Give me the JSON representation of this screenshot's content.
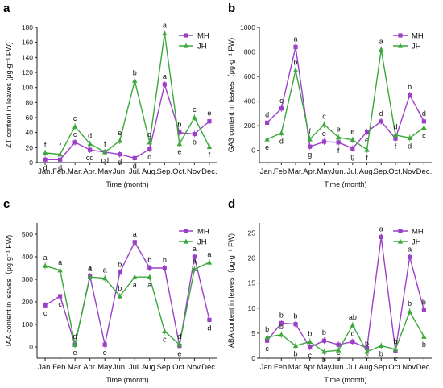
{
  "colors": {
    "MH": "#9b3fc8",
    "JH": "#3aa83a",
    "axis": "#222222"
  },
  "chart_data": [
    {
      "panel": "a",
      "type": "line",
      "categories": [
        "Jan.",
        "Feb.",
        "Mar.",
        "Apr.",
        "May",
        "Jun.",
        "Jul.",
        "Aug.",
        "Sep.",
        "Oct.",
        "Nov.",
        "Dec."
      ],
      "ylabel": "ZT content in leaves (μg·g⁻¹ FW)",
      "xlabel": "Time (month)",
      "ylim": [
        0,
        180
      ],
      "yticks": [
        0,
        20,
        40,
        60,
        80,
        100,
        120,
        140,
        160,
        180
      ],
      "legend_position": "top-right",
      "series": [
        {
          "name": "MH",
          "marker": "square",
          "values": [
            4,
            4,
            27,
            17,
            14,
            11,
            6,
            18,
            104,
            40,
            38,
            55
          ],
          "labels": [
            "d",
            "d",
            "c",
            "cd",
            "cd",
            "d",
            "d",
            "d",
            "a",
            "b",
            "b",
            "e"
          ],
          "label_pos": [
            "below",
            "below",
            "above",
            "below",
            "below",
            "below",
            "below",
            "below",
            "above",
            "above",
            "below",
            "above"
          ]
        },
        {
          "name": "JH",
          "marker": "triangle",
          "values": [
            13,
            11,
            48,
            25,
            14,
            29,
            109,
            27,
            172,
            25,
            60,
            21
          ],
          "labels": [
            "f",
            "f",
            "c",
            "d",
            "f",
            "e",
            "b",
            "d",
            "a",
            "e",
            "c",
            "f"
          ],
          "label_pos": [
            "above",
            "above",
            "above",
            "above",
            "above",
            "above",
            "above",
            "above",
            "above",
            "below",
            "above",
            "below"
          ]
        }
      ]
    },
    {
      "panel": "b",
      "type": "line",
      "categories": [
        "Jan.",
        "Feb.",
        "Mar.",
        "Apr.",
        "May",
        "Jun.",
        "Jul.",
        "Aug.",
        "Sep.",
        "Oct.",
        "Nov.",
        "Dec."
      ],
      "ylabel": "GA3 content in leaves（μg·g⁻¹ FW)",
      "xlabel": "Time (month)",
      "ylim": [
        -100,
        1000
      ],
      "yticks": [
        0,
        200,
        400,
        600,
        800,
        1000
      ],
      "legend_position": "top-right",
      "series": [
        {
          "name": "MH",
          "marker": "square",
          "values": [
            225,
            340,
            840,
            30,
            70,
            65,
            15,
            150,
            235,
            95,
            450,
            235
          ],
          "labels": [
            "d",
            "c",
            "a",
            "g",
            "e",
            "f",
            "g",
            "e",
            "d",
            "f",
            "b",
            "d"
          ],
          "label_pos": [
            "above",
            "above",
            "above",
            "below",
            "above",
            "below",
            "below",
            "below",
            "above",
            "below",
            "above",
            "above"
          ]
        },
        {
          "name": "JH",
          "marker": "triangle",
          "values": [
            90,
            140,
            650,
            90,
            210,
            105,
            85,
            5,
            820,
            125,
            100,
            185
          ],
          "labels": [
            "e",
            "d",
            "b",
            "f",
            "c",
            "e",
            "e",
            "f",
            "a",
            "d",
            "d",
            "c"
          ],
          "label_pos": [
            "below",
            "below",
            "above",
            "above",
            "above",
            "above",
            "above",
            "below",
            "above",
            "above",
            "below",
            "below"
          ]
        }
      ]
    },
    {
      "panel": "c",
      "type": "line",
      "categories": [
        "Jan.",
        "Feb.",
        "Mar.",
        "Apr.",
        "May",
        "Jun.",
        "Jul.",
        "Aug.",
        "Sep.",
        "Oct.",
        "Nov.",
        "Dec."
      ],
      "ylabel": "IAA content in leaves（μg·g⁻¹ FW)",
      "xlabel": "Time (month)",
      "ylim": [
        -50,
        550
      ],
      "yticks": [
        0,
        100,
        200,
        300,
        400,
        500
      ],
      "legend_position": "top-right",
      "series": [
        {
          "name": "MH",
          "marker": "square",
          "values": [
            185,
            225,
            10,
            315,
            10,
            330,
            465,
            350,
            350,
            5,
            400,
            120
          ],
          "labels": [
            "c",
            "c",
            "e",
            "a",
            "e",
            "b",
            "a",
            "b",
            "b",
            "e",
            "a",
            "d"
          ],
          "label_pos": [
            "below",
            "below",
            "below",
            "above",
            "below",
            "above",
            "above",
            "above",
            "above",
            "below",
            "above",
            "below"
          ]
        },
        {
          "name": "JH",
          "marker": "triangle",
          "values": [
            360,
            340,
            10,
            310,
            305,
            225,
            310,
            310,
            70,
            10,
            345,
            375
          ],
          "labels": [
            "a",
            "a",
            "d",
            "a",
            "a",
            "b",
            "a",
            "a",
            "c",
            "d",
            "a",
            "a"
          ],
          "label_pos": [
            "above",
            "above",
            "above",
            "above",
            "above",
            "above",
            "below",
            "below",
            "below",
            "above",
            "above",
            "above"
          ]
        }
      ]
    },
    {
      "panel": "d",
      "type": "line",
      "categories": [
        "Jan.",
        "Feb.",
        "Mar.",
        "Apr.",
        "May",
        "Jun.",
        "Jul.",
        "Aug.",
        "Sep.",
        "Oct.",
        "Nov.",
        "Dec."
      ],
      "ylabel": "ABA content in leaves（μg·g⁻¹ FW)",
      "xlabel": "Time (month)",
      "ylim": [
        0,
        27
      ],
      "yticks": [
        0,
        5,
        10,
        15,
        20,
        25
      ],
      "legend_position": "top-right",
      "series": [
        {
          "name": "MH",
          "marker": "square",
          "values": [
            3.5,
            7.0,
            6.8,
            2.2,
            3.5,
            2.7,
            3.3,
            2.0,
            24.2,
            1.5,
            20.2,
            9.6
          ],
          "labels": [
            "c",
            "b",
            "b",
            "c",
            "b",
            "c",
            "c",
            "c",
            "a",
            "c",
            "a",
            "b"
          ],
          "label_pos": [
            "below",
            "above",
            "above",
            "below",
            "above",
            "below",
            "above",
            "below",
            "above",
            "below",
            "above",
            "above"
          ]
        },
        {
          "name": "JH",
          "marker": "triangle",
          "values": [
            4.2,
            4.7,
            2.5,
            3.3,
            1.3,
            1.6,
            6.6,
            1.3,
            2.5,
            1.8,
            9.3,
            4.3
          ],
          "labels": [
            "b",
            "b",
            "b",
            "b",
            "b",
            "b",
            "ab",
            "b",
            "b",
            "b",
            "b",
            "b"
          ],
          "label_pos": [
            "above",
            "above",
            "below",
            "above",
            "below",
            "below",
            "above",
            "above",
            "below",
            "above",
            "above",
            "below"
          ]
        }
      ]
    }
  ]
}
